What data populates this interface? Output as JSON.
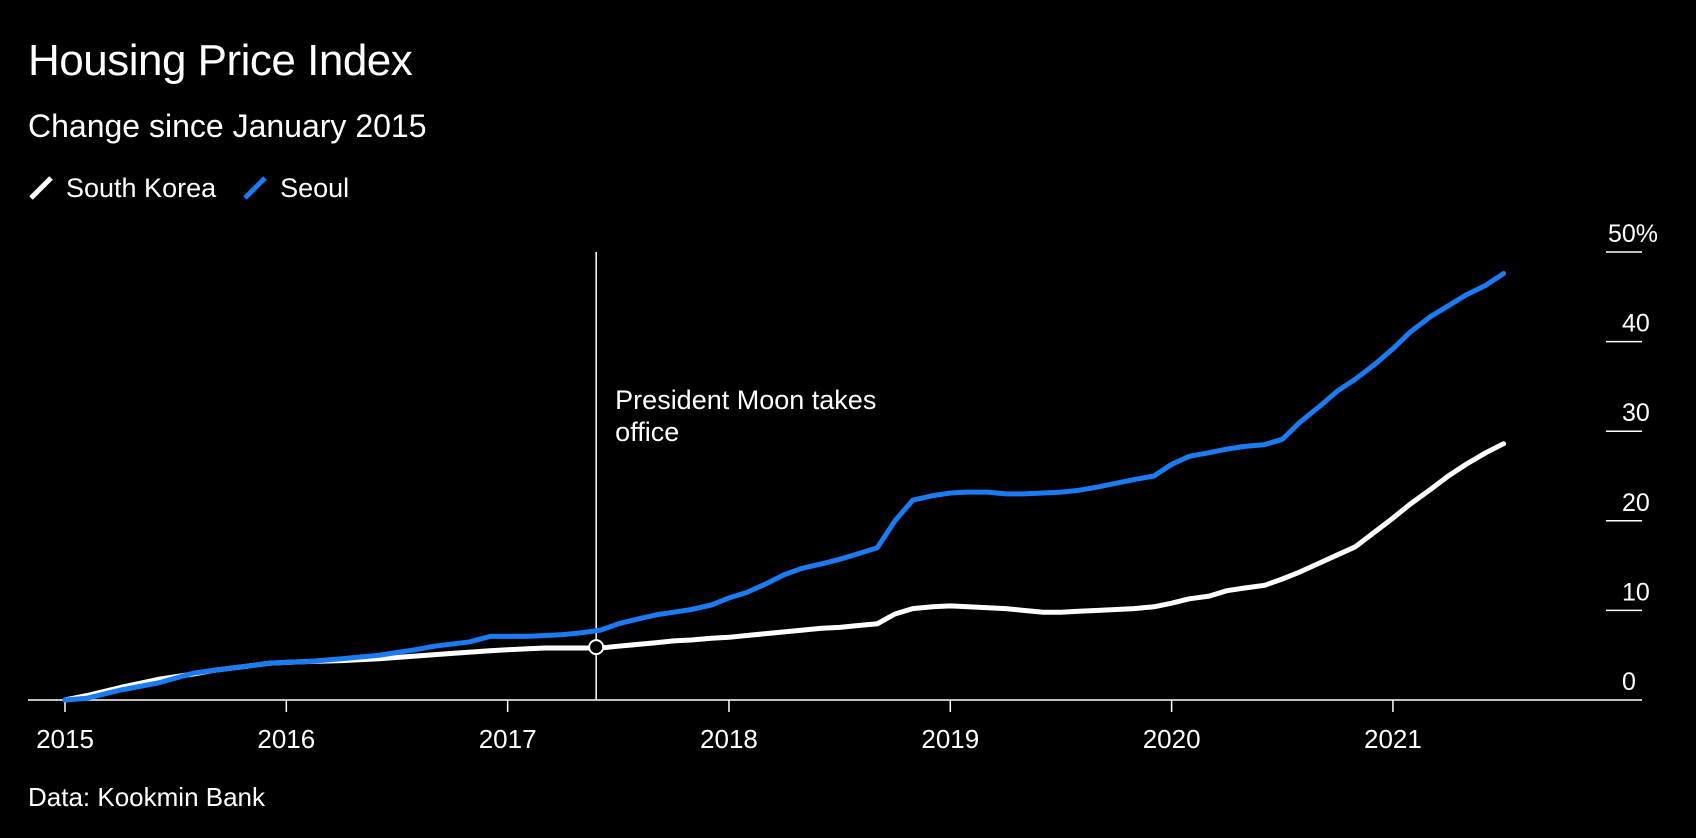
{
  "title": "Housing Price Index",
  "subtitle": "Change since January 2015",
  "source": "Data: Kookmin Bank",
  "colors": {
    "background": "#000000",
    "south_korea": "#ffffff",
    "seoul": "#1a7bf2",
    "text": "#ffffff"
  },
  "chart_data": {
    "type": "line",
    "title": "Housing Price Index",
    "subtitle": "Change since January 2015",
    "xlabel": "",
    "ylabel": "",
    "xlim": [
      2015.0,
      2021.8
    ],
    "ylim": [
      0,
      50
    ],
    "y_ticks": [
      {
        "value": 50,
        "label": "50%"
      },
      {
        "value": 40,
        "label": "40"
      },
      {
        "value": 30,
        "label": "30"
      },
      {
        "value": 20,
        "label": "20"
      },
      {
        "value": 10,
        "label": "10"
      },
      {
        "value": 0,
        "label": "0"
      }
    ],
    "x_ticks": [
      {
        "value": 2015,
        "label": "2015"
      },
      {
        "value": 2016,
        "label": "2016"
      },
      {
        "value": 2017,
        "label": "2017"
      },
      {
        "value": 2018,
        "label": "2018"
      },
      {
        "value": 2019,
        "label": "2019"
      },
      {
        "value": 2020,
        "label": "2020"
      },
      {
        "value": 2021,
        "label": "2021"
      }
    ],
    "series": [
      {
        "name": "South Korea",
        "color": "#ffffff",
        "x": [
          2015.0,
          2015.1,
          2015.25,
          2015.42,
          2015.58,
          2015.67,
          2015.83,
          2015.92,
          2016.0,
          2016.1,
          2016.25,
          2016.42,
          2016.58,
          2016.75,
          2016.92,
          2017.0,
          2017.08,
          2017.17,
          2017.25,
          2017.33,
          2017.42,
          2017.5,
          2017.67,
          2017.75,
          2017.83,
          2017.92,
          2018.0,
          2018.08,
          2018.25,
          2018.42,
          2018.5,
          2018.58,
          2018.67,
          2018.75,
          2018.83,
          2018.92,
          2019.0,
          2019.08,
          2019.17,
          2019.25,
          2019.33,
          2019.42,
          2019.5,
          2019.58,
          2019.67,
          2019.75,
          2019.83,
          2019.92,
          2020.0,
          2020.08,
          2020.17,
          2020.25,
          2020.33,
          2020.42,
          2020.5,
          2020.58,
          2020.67,
          2020.75,
          2020.83,
          2020.92,
          2021.0,
          2021.08,
          2021.17,
          2021.25,
          2021.33,
          2021.42,
          2021.5
        ],
        "values": [
          0.0,
          0.5,
          1.4,
          2.3,
          2.9,
          3.3,
          3.8,
          4.1,
          4.2,
          4.3,
          4.4,
          4.6,
          4.9,
          5.2,
          5.5,
          5.6,
          5.7,
          5.8,
          5.8,
          5.8,
          5.8,
          6.0,
          6.4,
          6.6,
          6.7,
          6.9,
          7.0,
          7.2,
          7.6,
          8.0,
          8.1,
          8.3,
          8.5,
          9.6,
          10.2,
          10.4,
          10.5,
          10.4,
          10.3,
          10.2,
          10.0,
          9.8,
          9.8,
          9.9,
          10.0,
          10.1,
          10.2,
          10.4,
          10.8,
          11.3,
          11.6,
          12.2,
          12.5,
          12.8,
          13.5,
          14.3,
          15.3,
          16.2,
          17.1,
          18.8,
          20.3,
          21.9,
          23.5,
          25.0,
          26.3,
          27.6,
          28.6
        ]
      },
      {
        "name": "Seoul",
        "color": "#1a7bf2",
        "x": [
          2015.0,
          2015.1,
          2015.25,
          2015.42,
          2015.58,
          2015.67,
          2015.83,
          2015.92,
          2016.0,
          2016.1,
          2016.25,
          2016.42,
          2016.58,
          2016.67,
          2016.83,
          2016.92,
          2017.0,
          2017.08,
          2017.17,
          2017.25,
          2017.33,
          2017.42,
          2017.5,
          2017.58,
          2017.67,
          2017.75,
          2017.83,
          2017.92,
          2018.0,
          2018.08,
          2018.17,
          2018.25,
          2018.33,
          2018.42,
          2018.5,
          2018.58,
          2018.67,
          2018.75,
          2018.83,
          2018.92,
          2019.0,
          2019.08,
          2019.17,
          2019.25,
          2019.33,
          2019.42,
          2019.5,
          2019.58,
          2019.67,
          2019.75,
          2019.83,
          2019.92,
          2020.0,
          2020.08,
          2020.17,
          2020.25,
          2020.33,
          2020.42,
          2020.5,
          2020.58,
          2020.67,
          2020.75,
          2020.83,
          2020.92,
          2021.0,
          2021.08,
          2021.17,
          2021.25,
          2021.33,
          2021.42,
          2021.5
        ],
        "values": [
          0.0,
          0.2,
          1.1,
          1.9,
          3.0,
          3.3,
          3.8,
          4.1,
          4.2,
          4.3,
          4.6,
          5.0,
          5.6,
          6.0,
          6.5,
          7.1,
          7.1,
          7.1,
          7.2,
          7.3,
          7.5,
          7.8,
          8.5,
          9.0,
          9.5,
          9.8,
          10.1,
          10.6,
          11.4,
          12.0,
          13.0,
          14.0,
          14.7,
          15.2,
          15.7,
          16.3,
          17.0,
          20.0,
          22.3,
          22.8,
          23.1,
          23.2,
          23.2,
          23.0,
          23.0,
          23.1,
          23.2,
          23.4,
          23.8,
          24.2,
          24.6,
          25.0,
          26.3,
          27.2,
          27.6,
          28.0,
          28.3,
          28.5,
          29.1,
          31.0,
          32.8,
          34.5,
          35.8,
          37.5,
          39.2,
          41.1,
          42.8,
          44.0,
          45.2,
          46.3,
          47.6
        ]
      }
    ],
    "annotations": [
      {
        "x": 2017.4,
        "y": 5.9,
        "text": "President Moon takes office",
        "lines": [
          "President Moon takes",
          "office"
        ]
      }
    ],
    "legend": "top-left"
  }
}
